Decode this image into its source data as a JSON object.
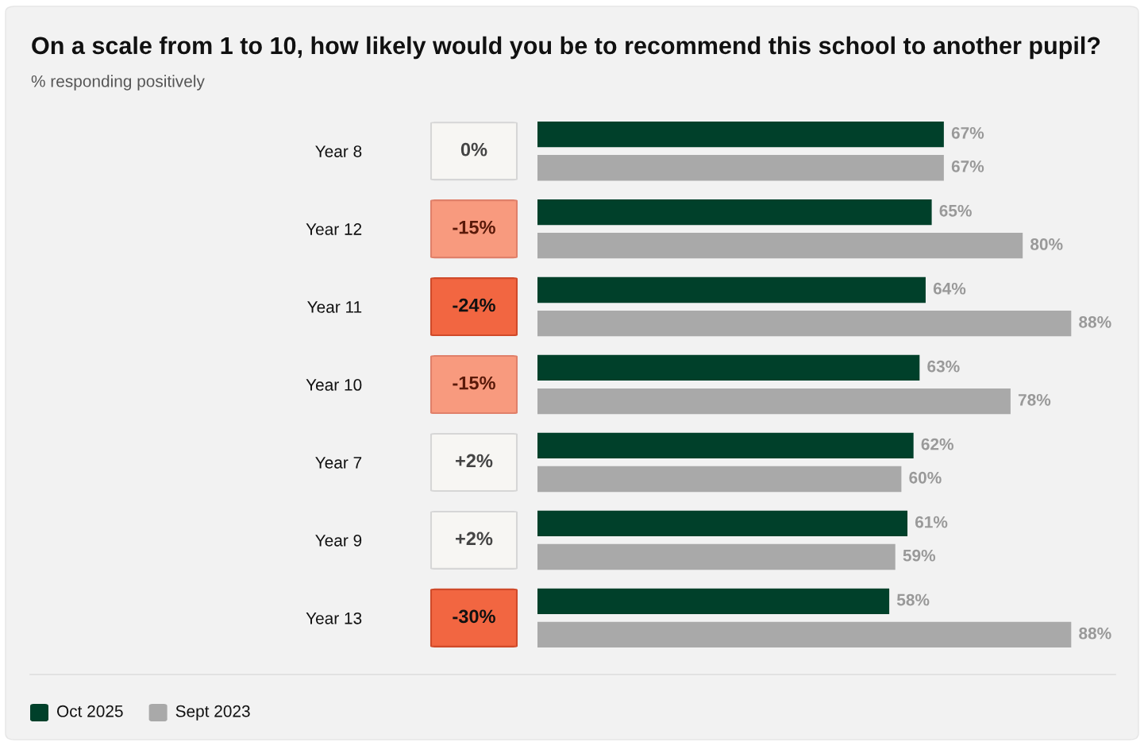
{
  "chart_data": {
    "type": "bar",
    "orientation": "horizontal",
    "title": "On a scale from 1 to 10, how likely would you be to recommend this school to another pupil?",
    "subtitle": "% responding positively",
    "categories": [
      "Year 8",
      "Year 12",
      "Year 11",
      "Year 10",
      "Year 7",
      "Year 9",
      "Year 13"
    ],
    "series": [
      {
        "name": "Oct 2025",
        "color": "#00402a",
        "values": [
          67,
          65,
          64,
          63,
          62,
          61,
          58
        ],
        "value_labels": [
          "67%",
          "65%",
          "64%",
          "63%",
          "62%",
          "61%",
          "58%"
        ]
      },
      {
        "name": "Sept 2023",
        "color": "#a9a9a9",
        "values": [
          67,
          80,
          88,
          78,
          60,
          59,
          88
        ],
        "value_labels": [
          "67%",
          "80%",
          "88%",
          "78%",
          "60%",
          "59%",
          "88%"
        ]
      }
    ],
    "annotations": [
      "0%",
      "-15%",
      "-24%",
      "-15%",
      "+2%",
      "+2%",
      "-30%"
    ],
    "legend": "bottom left"
  }
}
